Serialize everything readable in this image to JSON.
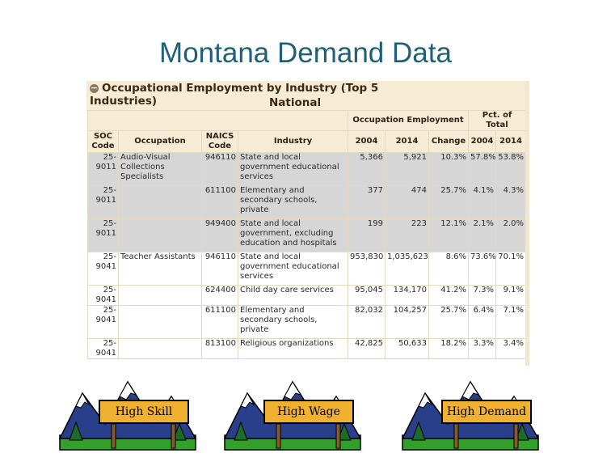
{
  "slide_title": "Montana Demand Data",
  "panel": {
    "title_line1": "Occupational Employment by Industry (Top 5",
    "title_line2": "Industries)",
    "subtitle": "National"
  },
  "table": {
    "group_headers": {
      "occupation_employment": "Occupation Employment",
      "pct_of_total": "Pct. of Total"
    },
    "columns": [
      "SOC Code",
      "Occupation",
      "NAICS Code",
      "Industry",
      "2004",
      "2014",
      "Change",
      "2004",
      "2014"
    ],
    "rows": [
      {
        "soc": "25-9011",
        "occupation": "Audio-Visual Collections Specialists",
        "naics": "946110",
        "industry": "State and local government educational services",
        "emp2004": "5,366",
        "emp2014": "5,921",
        "change": "10.3%",
        "pct2004": "57.8%",
        "pct2014": "53.8%"
      },
      {
        "soc": "25-9011",
        "occupation": "",
        "naics": "611100",
        "industry": "Elementary and secondary schools, private",
        "emp2004": "377",
        "emp2014": "474",
        "change": "25.7%",
        "pct2004": "4.1%",
        "pct2014": "4.3%"
      },
      {
        "soc": "25-9011",
        "occupation": "",
        "naics": "949400",
        "industry": "State and local government, excluding education and hospitals",
        "emp2004": "199",
        "emp2014": "223",
        "change": "12.1%",
        "pct2004": "2.1%",
        "pct2014": "2.0%"
      },
      {
        "soc": "25-9041",
        "occupation": "Teacher Assistants",
        "naics": "946110",
        "industry": "State and local government educational services",
        "emp2004": "953,830",
        "emp2014": "1,035,623",
        "change": "8.6%",
        "pct2004": "73.6%",
        "pct2014": "70.1%"
      },
      {
        "soc": "25-9041",
        "occupation": "",
        "naics": "624400",
        "industry": "Child day care services",
        "emp2004": "95,045",
        "emp2014": "134,170",
        "change": "41.2%",
        "pct2004": "7.3%",
        "pct2014": "9.1%"
      },
      {
        "soc": "25-9041",
        "occupation": "",
        "naics": "611100",
        "industry": "Elementary and secondary schools, private",
        "emp2004": "82,032",
        "emp2014": "104,257",
        "change": "25.7%",
        "pct2004": "6.4%",
        "pct2014": "7.1%"
      },
      {
        "soc": "25-9041",
        "occupation": "",
        "naics": "813100",
        "industry": "Religious organizations",
        "emp2004": "42,825",
        "emp2014": "50,633",
        "change": "18.2%",
        "pct2004": "3.3%",
        "pct2014": "3.4%"
      }
    ]
  },
  "signs": [
    {
      "label": "High Skill"
    },
    {
      "label": "High Wage"
    },
    {
      "label": "High Demand"
    }
  ],
  "colors": {
    "title": "#1f5f78",
    "panel_bg": "#f6ecd6",
    "shaded_row": "#d6d6d6",
    "sign": "#f0b030"
  }
}
